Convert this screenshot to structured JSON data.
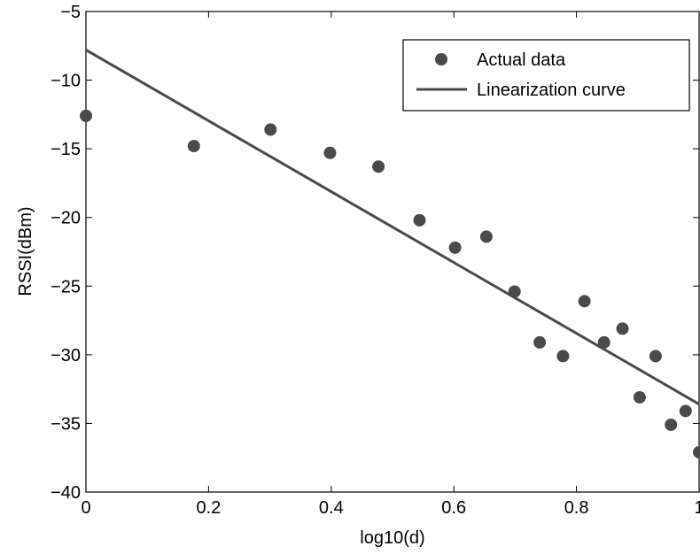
{
  "chart_data": {
    "type": "scatter",
    "title": "",
    "xlabel": "log10(d)",
    "ylabel": "RSSI(dBm)",
    "xlim": [
      0,
      1
    ],
    "ylim": [
      -40,
      -5
    ],
    "xticks": [
      0,
      0.2,
      0.4,
      0.6,
      0.8,
      1
    ],
    "xtick_labels": [
      "0",
      "0.2",
      "0.4",
      "0.6",
      "0.8",
      "1"
    ],
    "yticks": [
      -40,
      -35,
      -30,
      -25,
      -20,
      -15,
      -10,
      -5
    ],
    "ytick_labels": [
      "−40",
      "−35",
      "−30",
      "−25",
      "−20",
      "−15",
      "−10",
      "−5"
    ],
    "grid": false,
    "legend_position": "top-right",
    "series": [
      {
        "name": "Actual data",
        "kind": "points",
        "color": "#4a4a4a",
        "points": [
          [
            0.0,
            -12.6
          ],
          [
            0.176,
            -14.8
          ],
          [
            0.301,
            -13.6
          ],
          [
            0.398,
            -15.3
          ],
          [
            0.477,
            -16.3
          ],
          [
            0.544,
            -20.2
          ],
          [
            0.602,
            -22.2
          ],
          [
            0.653,
            -21.4
          ],
          [
            0.699,
            -25.4
          ],
          [
            0.74,
            -29.1
          ],
          [
            0.778,
            -30.1
          ],
          [
            0.813,
            -26.1
          ],
          [
            0.845,
            -29.1
          ],
          [
            0.875,
            -28.1
          ],
          [
            0.903,
            -33.1
          ],
          [
            0.929,
            -30.1
          ],
          [
            0.954,
            -35.1
          ],
          [
            0.978,
            -34.1
          ],
          [
            1.0,
            -37.1
          ]
        ]
      },
      {
        "name": "Linearization curve",
        "kind": "line",
        "color": "#4a4a4a",
        "points": [
          [
            0,
            -7.8
          ],
          [
            1,
            -33.6
          ]
        ]
      }
    ]
  }
}
